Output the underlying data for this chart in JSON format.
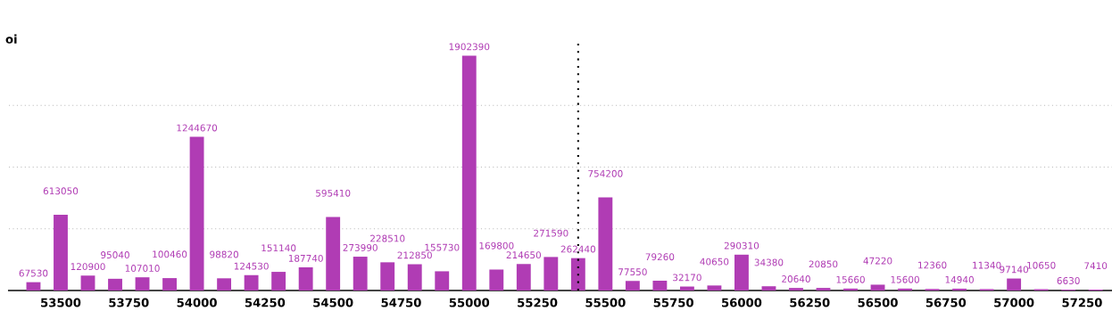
{
  "chart_data": {
    "type": "bar",
    "ylabel": "oi",
    "x": [
      53400,
      53500,
      53600,
      53700,
      53800,
      53900,
      54000,
      54100,
      54200,
      54300,
      54400,
      54500,
      54600,
      54700,
      54800,
      54900,
      55000,
      55100,
      55200,
      55300,
      55400,
      55500,
      55600,
      55700,
      55800,
      55900,
      56000,
      56100,
      56200,
      56300,
      56400,
      56500,
      56600,
      56700,
      56800,
      56900,
      57000,
      57100,
      57200,
      57300
    ],
    "series": [
      {
        "color": "#b03cb4",
        "values": [
          67530,
          613050,
          120900,
          95040,
          107010,
          100460,
          1244670,
          98820,
          124530,
          151140,
          187740,
          595410,
          273990,
          228510,
          212850,
          155730,
          1902390,
          169800,
          214650,
          271590,
          262440,
          754200,
          77550,
          79260,
          32170,
          40650,
          290310,
          34380,
          20640,
          20850,
          15660,
          47220,
          15600,
          12360,
          14940,
          11340,
          97140,
          10650,
          6630,
          7410
        ]
      }
    ],
    "data_labels": true,
    "xlim": [
      53310,
      57360
    ],
    "xticks": [
      53500,
      53750,
      54000,
      54250,
      54500,
      54750,
      55000,
      55250,
      55500,
      55750,
      56000,
      56250,
      56500,
      56750,
      57000,
      57250
    ],
    "ylim": [
      0,
      2000000
    ],
    "yticks": [
      {
        "value": 500000,
        "label": null
      },
      {
        "value": 1000000,
        "label": null
      },
      {
        "value": 1500000,
        "label": null
      }
    ],
    "tick_labels": "x",
    "grid": "y",
    "ref_lines": [
      {
        "axis": "x",
        "value": 55400,
        "color": "#000000",
        "line_style": "dotted"
      }
    ]
  }
}
